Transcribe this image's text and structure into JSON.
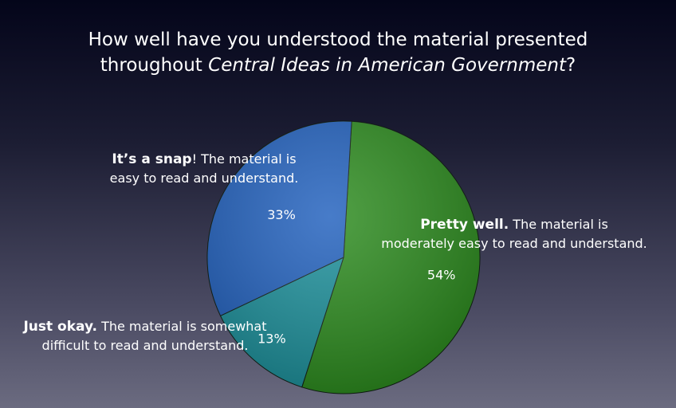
{
  "title": {
    "line1": "How well have you understood the material presented",
    "line2_prefix": "throughout ",
    "line2_italic": "Central Ideas in American Government",
    "line2_suffix": "?"
  },
  "chart_data": {
    "type": "pie",
    "slices": [
      {
        "label": "Pretty well.",
        "description": "The material is moderately easy to read and understand.",
        "value": 54,
        "value_label": "54%",
        "color": "#2a8a1c"
      },
      {
        "label": "Just okay.",
        "description": "The material is somewhat difficult to read and understand.",
        "value": 13,
        "value_label": "13%",
        "color": "#1a8f9a"
      },
      {
        "label": "It’s a snap",
        "description": "! The material is easy to read and understand.",
        "value": 33,
        "value_label": "33%",
        "color": "#1f5fbd"
      }
    ]
  },
  "labels": {
    "snap_line1_rest": "! The material is",
    "snap_line2": "easy to read and understand.",
    "pretty_line1_rest": " The material is",
    "pretty_line2": "moderately easy to read and understand.",
    "okay_line1_rest": " The material is somewhat",
    "okay_line2": "difficult to read and understand."
  }
}
